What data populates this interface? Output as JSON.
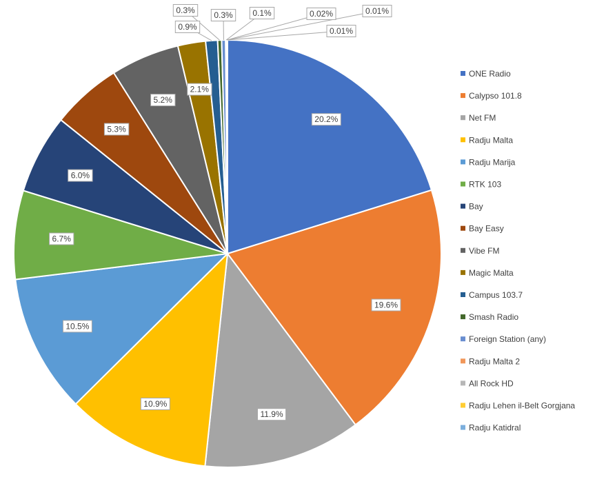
{
  "chart_data": {
    "type": "pie",
    "title": "",
    "legend_position": "right",
    "series": [
      {
        "name": "ONE Radio",
        "value": 20.2,
        "label": "20.2%",
        "color": "#4472C4"
      },
      {
        "name": "Calypso 101.8",
        "value": 19.6,
        "label": "19.6%",
        "color": "#ED7D31"
      },
      {
        "name": "Net FM",
        "value": 11.9,
        "label": "11.9%",
        "color": "#A5A5A5"
      },
      {
        "name": "Radju Malta",
        "value": 10.9,
        "label": "10.9%",
        "color": "#FFC000"
      },
      {
        "name": "Radju Marija",
        "value": 10.5,
        "label": "10.5%",
        "color": "#5B9BD5"
      },
      {
        "name": "RTK 103",
        "value": 6.7,
        "label": "6.7%",
        "color": "#70AD47"
      },
      {
        "name": "Bay",
        "value": 6.0,
        "label": "6.0%",
        "color": "#264478"
      },
      {
        "name": "Bay Easy",
        "value": 5.3,
        "label": "5.3%",
        "color": "#9E480E"
      },
      {
        "name": "Vibe FM",
        "value": 5.2,
        "label": "5.2%",
        "color": "#636363"
      },
      {
        "name": "Magic Malta",
        "value": 2.1,
        "label": "2.1%",
        "color": "#997300"
      },
      {
        "name": "Campus 103.7",
        "value": 0.9,
        "label": "0.9%",
        "color": "#255E91"
      },
      {
        "name": "Smash Radio",
        "value": 0.3,
        "label": "0.3%",
        "color": "#43682B"
      },
      {
        "name": "Foreign Station (any)",
        "value": 0.3,
        "label": "0.3%",
        "color": "#698ED0"
      },
      {
        "name": "Radju Malta 2",
        "value": 0.1,
        "label": "0.1%",
        "color": "#F1975A"
      },
      {
        "name": "All Rock HD",
        "value": 0.02,
        "label": "0.02%",
        "color": "#B7B7B7"
      },
      {
        "name": "Radju Lehen il-Belt Gorgjana",
        "value": 0.01,
        "label": "0.01%",
        "color": "#FFCD33"
      },
      {
        "name": "Radju Katidral",
        "value": 0.01,
        "label": "0.01%",
        "color": "#7CAFDD"
      }
    ]
  }
}
